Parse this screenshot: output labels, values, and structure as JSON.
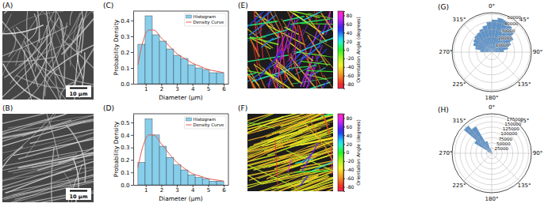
{
  "images": [
    {
      "panel": "(A)",
      "scale_bar": "10 μm"
    },
    {
      "panel": "(B)",
      "scale_bar": "10 μm"
    },
    {
      "panel": "(E)",
      "colorbar": {
        "label": "Orientation Angle (degrees)",
        "range": [
          -90,
          90
        ],
        "ticks": [
          -80,
          -60,
          -40,
          -20,
          0,
          20,
          40,
          60,
          80
        ]
      }
    },
    {
      "panel": "(F)",
      "colorbar": {
        "label": "Orientation Angle (degrees)",
        "range": [
          -90,
          90
        ],
        "ticks": [
          -80,
          -60,
          -40,
          -20,
          0,
          20,
          40,
          60,
          80
        ]
      }
    }
  ],
  "chart_data": [
    {
      "panel": "(C)",
      "type": "histogram",
      "xlabel": "Diameter (μm)",
      "ylabel": "Probability Density",
      "bins": [
        0.5,
        0.96,
        1.42,
        1.88,
        2.33,
        2.79,
        3.25,
        3.71,
        4.17,
        4.63,
        5.08,
        5.54,
        6.0
      ],
      "series": [
        {
          "name": "Histogram",
          "type": "bar",
          "color": "#87ceeb",
          "values": [
            0.25,
            0.43,
            0.31,
            0.27,
            0.22,
            0.18,
            0.16,
            0.12,
            0.1,
            0.09,
            0.07,
            0.07
          ]
        },
        {
          "name": "Density Curve",
          "type": "line",
          "color": "#e05a4f",
          "x": [
            0.5,
            0.8,
            1.2,
            1.5,
            2,
            2.5,
            3,
            3.5,
            4,
            4.5,
            5,
            5.5,
            6
          ],
          "values": [
            0.12,
            0.26,
            0.34,
            0.34,
            0.29,
            0.24,
            0.19,
            0.16,
            0.13,
            0.11,
            0.09,
            0.08,
            0.07
          ]
        }
      ],
      "xlim": [
        0.2,
        6.3
      ],
      "xticks": [
        1,
        2,
        3,
        4,
        5,
        6
      ],
      "ylim": [
        0,
        0.46
      ],
      "yticks": [
        {
          "value": 0,
          "label": "0.0"
        },
        {
          "value": 0.1,
          "label": "0.1"
        },
        {
          "value": 0.2,
          "label": "0.2"
        },
        {
          "value": 0.3,
          "label": "0.3"
        },
        {
          "value": 0.4,
          "label": "0.4"
        }
      ],
      "legend": "upper right"
    },
    {
      "panel": "(D)",
      "type": "histogram",
      "xlabel": "Diameter (μm)",
      "ylabel": "Probability Density",
      "bins": [
        0.5,
        0.96,
        1.42,
        1.88,
        2.33,
        2.79,
        3.25,
        3.71,
        4.17,
        4.63,
        5.08,
        5.54,
        6.0
      ],
      "series": [
        {
          "name": "Histogram",
          "type": "bar",
          "color": "#87ceeb",
          "values": [
            0.18,
            0.53,
            0.4,
            0.31,
            0.22,
            0.16,
            0.12,
            0.08,
            0.06,
            0.05,
            0.03,
            0.03
          ]
        },
        {
          "name": "Density Curve",
          "type": "line",
          "color": "#e05a4f",
          "x": [
            0.5,
            0.8,
            1.2,
            1.5,
            2,
            2.5,
            3,
            3.5,
            4,
            4.5,
            5,
            5.5,
            6
          ],
          "values": [
            0.14,
            0.3,
            0.4,
            0.4,
            0.33,
            0.25,
            0.18,
            0.13,
            0.09,
            0.07,
            0.05,
            0.04,
            0.03
          ]
        }
      ],
      "xlim": [
        0.2,
        6.3
      ],
      "xticks": [
        1,
        2,
        3,
        4,
        5,
        6
      ],
      "ylim": [
        0,
        0.57
      ],
      "yticks": [
        {
          "value": 0,
          "label": "0.0"
        },
        {
          "value": 0.1,
          "label": "0.1"
        },
        {
          "value": 0.2,
          "label": "0.2"
        },
        {
          "value": 0.3,
          "label": "0.3"
        },
        {
          "value": 0.4,
          "label": "0.4"
        },
        {
          "value": 0.5,
          "label": "0.5"
        }
      ],
      "legend": "upper right"
    },
    {
      "panel": "(G)",
      "type": "polar_bar",
      "color": "#4f86c0",
      "bins": [
        -90,
        -80,
        -70,
        -60,
        -50,
        -40,
        -30,
        -20,
        -10,
        0,
        10,
        20,
        30,
        40,
        50,
        60,
        70,
        80,
        90
      ],
      "values": [
        15000,
        22000,
        26000,
        28000,
        30000,
        31000,
        33000,
        36000,
        40000,
        43000,
        46000,
        45000,
        42000,
        38000,
        33000,
        27000,
        22000,
        16000
      ],
      "xlim": [
        0,
        360
      ],
      "xticks": [
        {
          "value": 0,
          "label": "0°"
        },
        {
          "value": 45,
          "label": "45°"
        },
        {
          "value": 90,
          "label": "90°"
        },
        {
          "value": 135,
          "label": "135°"
        },
        {
          "value": 180,
          "label": "180°"
        },
        {
          "value": 225,
          "label": "225°"
        },
        {
          "value": 270,
          "label": "270°"
        },
        {
          "value": 315,
          "label": "315°"
        }
      ],
      "ylim": [
        0,
        52000
      ],
      "yticks": [
        10000,
        20000,
        30000,
        40000,
        50000
      ],
      "grid": true
    },
    {
      "panel": "(H)",
      "type": "polar_bar",
      "color": "#4f86c0",
      "bins": [
        -90,
        -80,
        -70,
        -60,
        -50,
        -40,
        -30,
        -20,
        -10,
        0,
        10,
        20,
        30,
        40,
        50,
        60,
        70,
        80,
        90
      ],
      "values": [
        4000,
        7000,
        22000,
        95000,
        172000,
        148000,
        62000,
        22000,
        11000,
        7000,
        5000,
        4500,
        4000,
        3500,
        3500,
        3500,
        3500,
        4000
      ],
      "xlim": [
        0,
        360
      ],
      "xticks": [
        {
          "value": 0,
          "label": "0°"
        },
        {
          "value": 45,
          "label": "45°"
        },
        {
          "value": 90,
          "label": "90°"
        },
        {
          "value": 135,
          "label": "135°"
        },
        {
          "value": 180,
          "label": "180°"
        },
        {
          "value": 225,
          "label": "225°"
        },
        {
          "value": 270,
          "label": "270°"
        },
        {
          "value": 315,
          "label": "315°"
        }
      ],
      "ylim": [
        0,
        188000
      ],
      "yticks": [
        25000,
        50000,
        75000,
        100000,
        125000,
        150000,
        175000
      ],
      "grid": true
    }
  ]
}
